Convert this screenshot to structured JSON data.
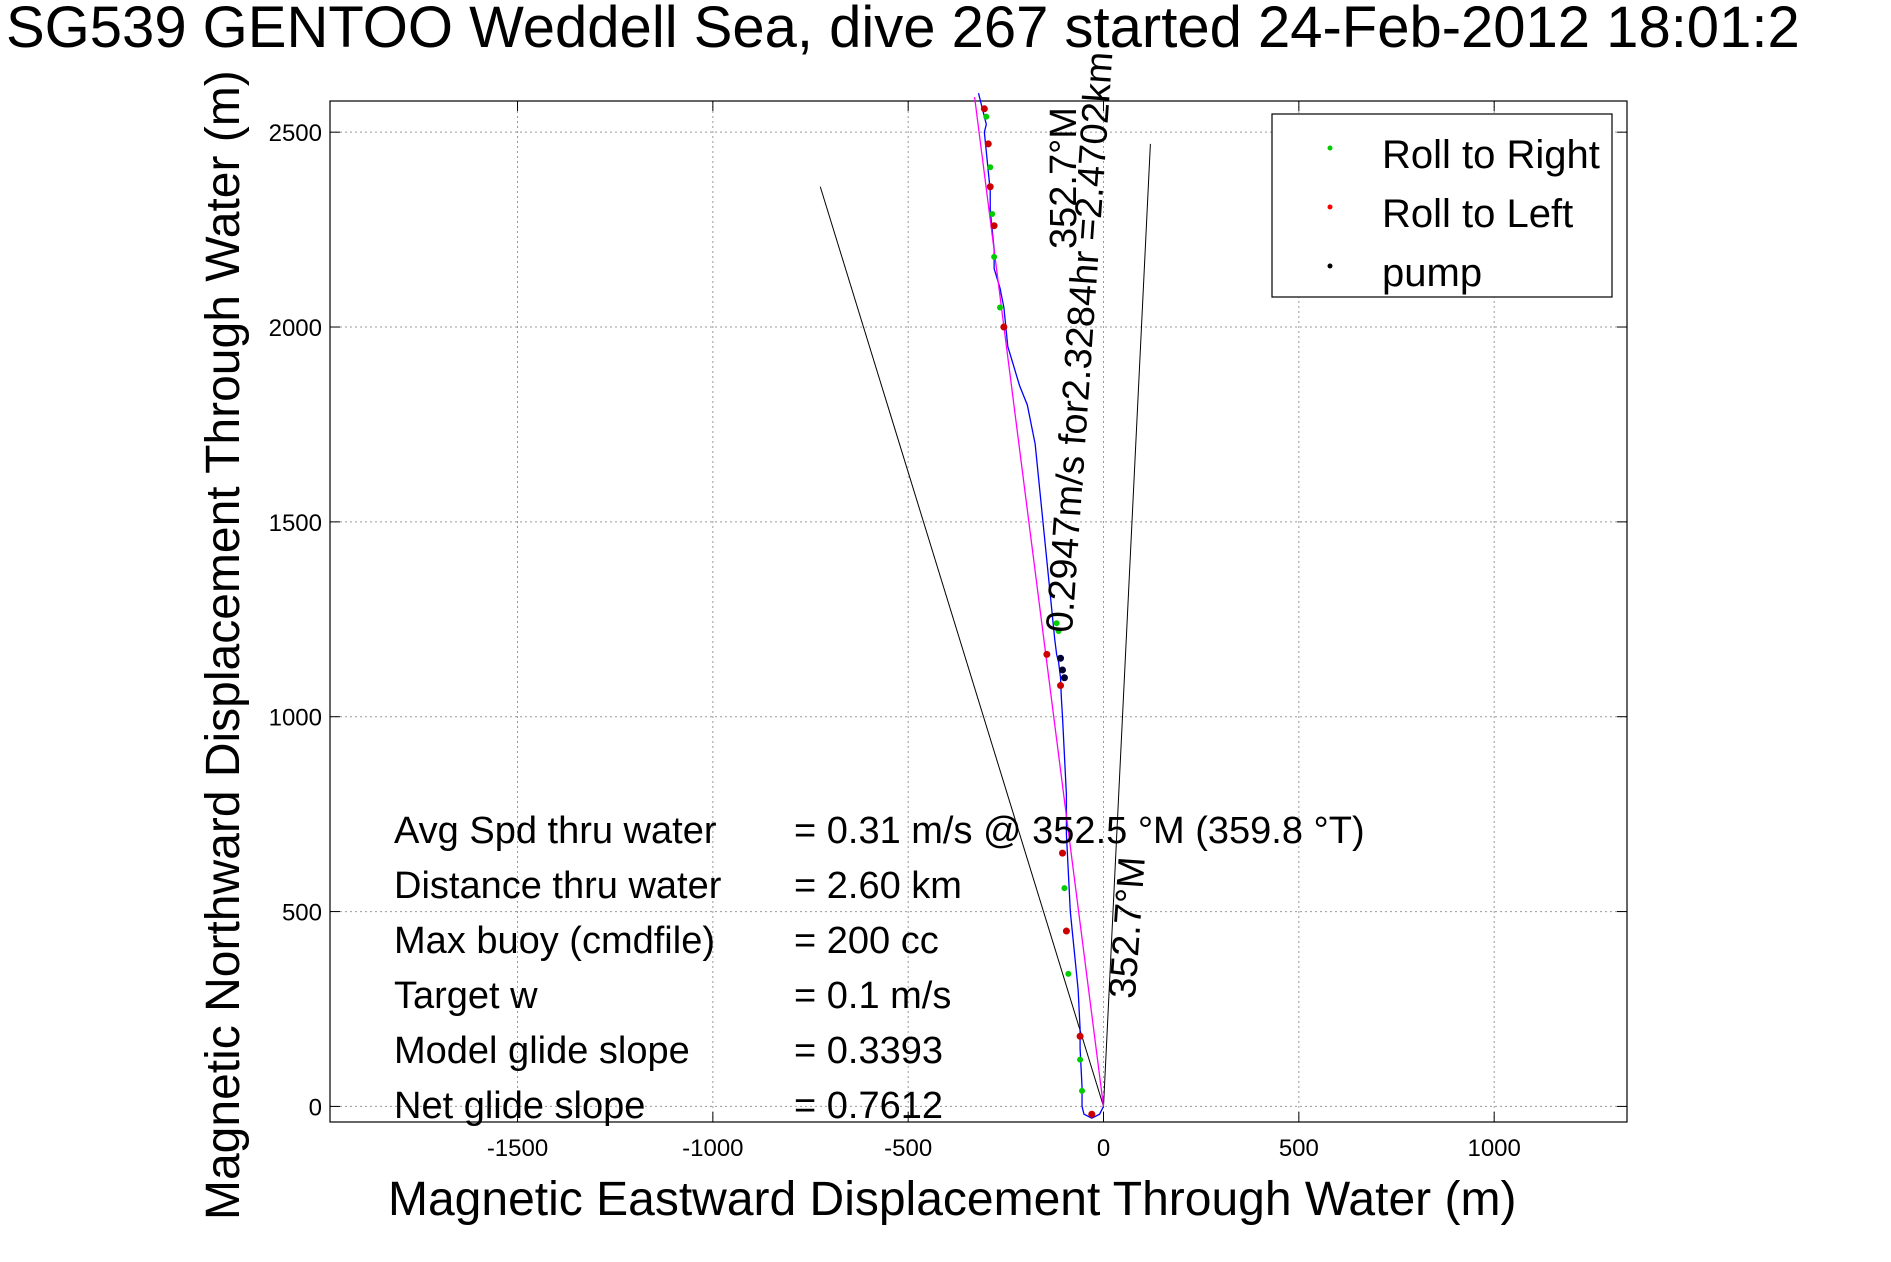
{
  "title": "SG539 GENTOO Weddell Sea, dive 267 started 24-Feb-2012 18:01:2",
  "chart_data": {
    "type": "line",
    "xlabel": "Magnetic Eastward Displacement Through Water (m)",
    "ylabel": "Magnetic Northward Displacement Through Water (m)",
    "xlim": [
      -1980,
      1340
    ],
    "ylim": [
      -40,
      2580
    ],
    "xticks": [
      -1500,
      -1000,
      -500,
      0,
      500,
      1000
    ],
    "yticks": [
      0,
      500,
      1000,
      1500,
      2000,
      2500
    ],
    "grid": true,
    "legend_position": "top-right",
    "legend": [
      {
        "label": "Roll to Right",
        "color": "#00cc00"
      },
      {
        "label": "Roll to Left",
        "color": "#ff0000"
      },
      {
        "label": "pump",
        "color": "#000000"
      }
    ],
    "series": [
      {
        "name": "track",
        "color": "#0000ff",
        "x": [
          0,
          -10,
          -30,
          -50,
          -55,
          -55,
          -60,
          -60,
          -65,
          -75,
          -85,
          -90,
          -95,
          -95,
          -100,
          -105,
          -108,
          -110,
          -115,
          -120,
          -125,
          -130,
          -135,
          -140,
          -145,
          -150,
          -155,
          -160,
          -165,
          -170,
          -175,
          -185,
          -195,
          -215,
          -230,
          -245,
          -250,
          -255,
          -265,
          -280,
          -280,
          -285,
          -290,
          -290,
          -295,
          -300,
          -305,
          -300,
          -305,
          -310,
          -315,
          -320
        ],
        "y": [
          0,
          -20,
          -30,
          -20,
          0,
          50,
          150,
          200,
          300,
          400,
          500,
          600,
          700,
          800,
          900,
          1000,
          1050,
          1100,
          1140,
          1160,
          1200,
          1250,
          1300,
          1350,
          1400,
          1450,
          1500,
          1550,
          1600,
          1650,
          1700,
          1750,
          1800,
          1850,
          1900,
          1950,
          2000,
          2050,
          2100,
          2150,
          2200,
          2250,
          2300,
          2350,
          2400,
          2450,
          2500,
          2520,
          2540,
          2560,
          2580,
          2600
        ]
      },
      {
        "name": "mean",
        "color": "#ff00ff",
        "x": [
          0,
          -330
        ],
        "y": [
          0,
          2590
        ]
      }
    ],
    "wedge": [
      {
        "x": [
          0,
          -725
        ],
        "y": [
          0,
          2360
        ]
      },
      {
        "x": [
          0,
          120
        ],
        "y": [
          0,
          2470
        ]
      }
    ],
    "markers_right_roll": {
      "x": [
        -55,
        -60,
        -90,
        -100,
        -115,
        -120,
        -265,
        -280,
        -285,
        -290,
        -300
      ],
      "y": [
        40,
        120,
        340,
        560,
        1220,
        1240,
        2050,
        2180,
        2290,
        2410,
        2540
      ]
    },
    "markers_left_roll": {
      "x": [
        -30,
        -60,
        -95,
        -105,
        -110,
        -145,
        -255,
        -280,
        -290,
        -295,
        -305
      ],
      "y": [
        -20,
        180,
        450,
        650,
        1080,
        1160,
        2000,
        2260,
        2360,
        2470,
        2560
      ]
    },
    "markers_pump": {
      "x": [
        -110,
        -105,
        -100
      ],
      "y": [
        1150,
        1120,
        1100
      ]
    },
    "annotations": [
      {
        "text": "352.7°M",
        "x": -155,
        "y": 2200,
        "rotation": -90
      },
      {
        "text": "0.2947m/s for2.3284hr =2.4702km",
        "x": -165,
        "y": 1220,
        "rotation": -86
      },
      {
        "text": "352.7°M",
        "x": -5,
        "y": 280,
        "rotation": -86
      }
    ]
  },
  "stats": {
    "rows": [
      {
        "label": "Avg Spd thru water",
        "value": "=  0.31 m/s @ 352.5 °M (359.8 °T)"
      },
      {
        "label": "Distance thru water",
        "value": "=  2.60 km"
      },
      {
        "label": "Max buoy (cmdfile)",
        "value": "= 200 cc"
      },
      {
        "label": "Target w",
        "value": "= 0.1 m/s"
      },
      {
        "label": "Model glide slope",
        "value": "= 0.3393"
      },
      {
        "label": "Net glide slope",
        "value": "= 0.7612"
      }
    ]
  }
}
